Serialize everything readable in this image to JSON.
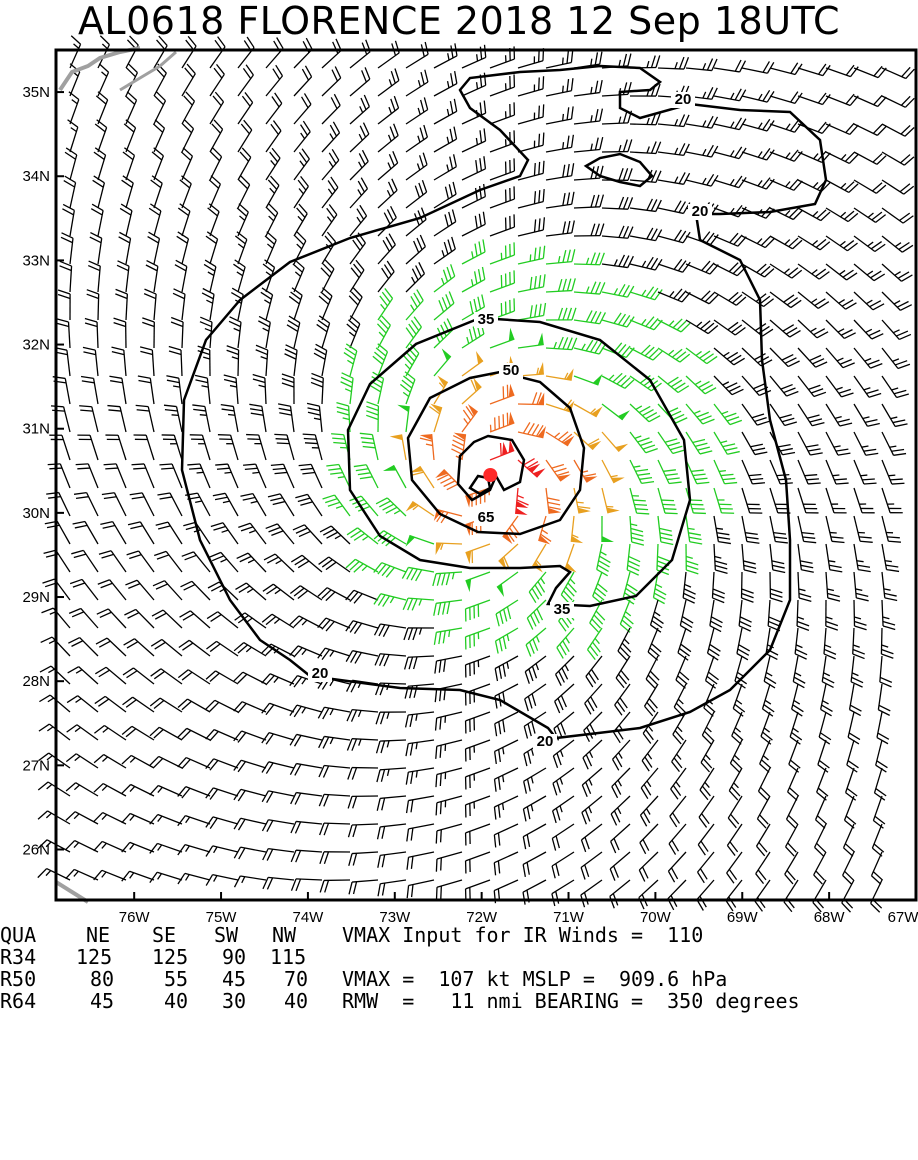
{
  "title": "AL0618   FLORENCE 2018 12 Sep 18UTC",
  "map": {
    "lat_labels": [
      "35N",
      "34N",
      "33N",
      "32N",
      "31N",
      "30N",
      "29N",
      "28N",
      "27N",
      "26N"
    ],
    "lon_labels": [
      "76W",
      "75W",
      "74W",
      "73W",
      "72W",
      "71W",
      "70W",
      "69W",
      "68W",
      "67W"
    ],
    "lat_values": [
      35,
      34,
      33,
      32,
      31,
      30,
      29,
      28,
      27,
      26
    ],
    "lon_values": [
      -76,
      -75,
      -74,
      -73,
      -72,
      -71,
      -70,
      -69,
      -68,
      -67
    ],
    "lat_range": [
      25.4,
      35.5
    ],
    "lon_range": [
      -76.9,
      -67.0
    ],
    "center": {
      "lat": 30.45,
      "lon": -71.9
    },
    "contour_labels": [
      "20",
      "20",
      "20",
      "20",
      "35",
      "35",
      "50",
      "65"
    ],
    "contour_levels_kt": [
      20,
      35,
      50,
      65
    ],
    "barb_colors": {
      "lt34": "#000000",
      "34to50": "#22cc22",
      "50to64": "#e8a020",
      "64to100": "#ee6a20",
      "gt100": "#ee2020"
    },
    "center_color": "#ff2a2a",
    "land_color": "#a0a0a0"
  },
  "footer": {
    "headers": [
      "QUA",
      "NE",
      "SE",
      "SW",
      "NW"
    ],
    "rows": [
      {
        "label": "R34",
        "ne": "125",
        "se": "125",
        "sw": "90",
        "nw": "115"
      },
      {
        "label": "R50",
        "ne": "80",
        "se": "55",
        "sw": "45",
        "nw": "70"
      },
      {
        "label": "R64",
        "ne": "45",
        "se": "40",
        "sw": "30",
        "nw": "40"
      }
    ],
    "line1": "VMAX Input for IR Winds =  110",
    "line3": "VMAX =  107 kt MSLP =  909.6 hPa",
    "line4": "RMW  =   11 nmi BEARING =  350 degrees"
  }
}
